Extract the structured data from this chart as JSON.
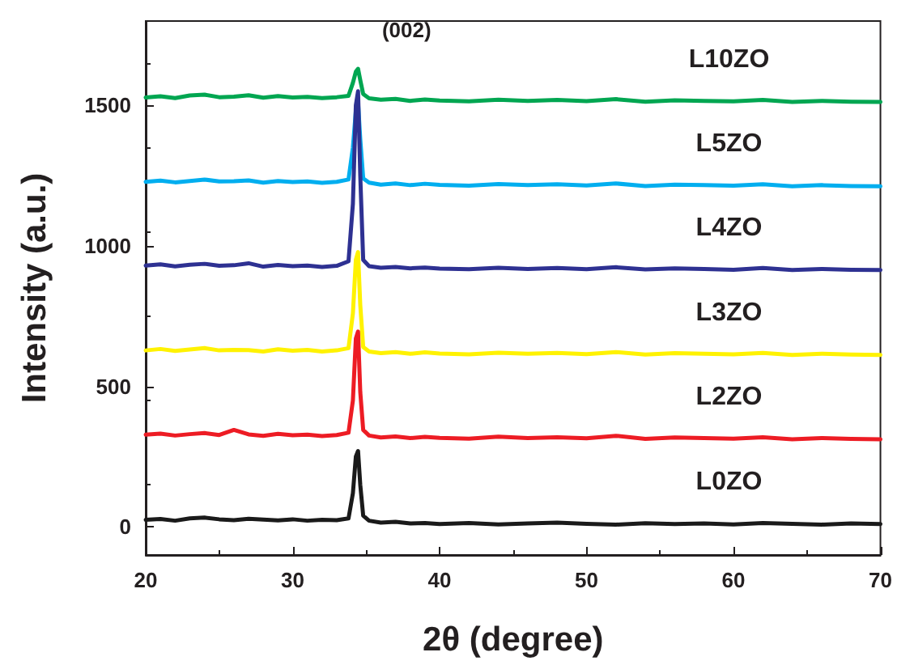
{
  "chart_data": {
    "type": "line",
    "xlabel": "2θ (degree)",
    "ylabel": "Intensity (a.u.)",
    "annotations": [
      {
        "text": "(002)",
        "x": 34.45,
        "y": 1630
      }
    ],
    "xlim": [
      20,
      70
    ],
    "xticks": [
      20,
      30,
      40,
      50,
      60,
      70
    ],
    "ylim": [
      -100,
      1800
    ],
    "yticks": [
      0,
      500,
      1000,
      1500
    ],
    "grid": false,
    "legend": false,
    "marker": "none",
    "line_style": "solid",
    "x": [
      20,
      21,
      22,
      23,
      24,
      25,
      26,
      27,
      28,
      29,
      30,
      31,
      32,
      33,
      33.8,
      34.1,
      34.3,
      34.45,
      34.6,
      34.8,
      35.2,
      36,
      37,
      38,
      39,
      40,
      42,
      44,
      46,
      48,
      50,
      52,
      54,
      56,
      58,
      60,
      62,
      64,
      66,
      68,
      70
    ],
    "series": [
      {
        "name": "L10ZO",
        "color": "#00a651",
        "values": [
          1528,
          1532,
          1526,
          1535,
          1538,
          1529,
          1531,
          1536,
          1527,
          1533,
          1528,
          1530,
          1526,
          1529,
          1534,
          1580,
          1620,
          1630,
          1590,
          1540,
          1525,
          1520,
          1523,
          1516,
          1521,
          1517,
          1514,
          1520,
          1516,
          1519,
          1515,
          1522,
          1513,
          1518,
          1516,
          1514,
          1519,
          1512,
          1516,
          1513,
          1512
        ]
      },
      {
        "name": "L5ZO",
        "color": "#00aeef",
        "values": [
          1228,
          1232,
          1226,
          1231,
          1236,
          1229,
          1230,
          1233,
          1225,
          1231,
          1227,
          1229,
          1224,
          1228,
          1236,
          1350,
          1480,
          1510,
          1380,
          1240,
          1225,
          1218,
          1222,
          1216,
          1221,
          1217,
          1214,
          1220,
          1216,
          1219,
          1215,
          1222,
          1213,
          1218,
          1216,
          1214,
          1219,
          1212,
          1216,
          1213,
          1212
        ]
      },
      {
        "name": "L4ZO",
        "color": "#2e3192",
        "values": [
          930,
          934,
          927,
          933,
          936,
          929,
          931,
          938,
          926,
          932,
          928,
          930,
          925,
          929,
          945,
          1150,
          1500,
          1550,
          1250,
          950,
          928,
          922,
          925,
          920,
          923,
          919,
          917,
          922,
          918,
          921,
          917,
          924,
          916,
          920,
          918,
          915,
          921,
          914,
          918,
          915,
          914
        ]
      },
      {
        "name": "L3ZO",
        "color": "#fff200",
        "values": [
          628,
          633,
          626,
          631,
          636,
          628,
          630,
          629,
          624,
          632,
          627,
          630,
          624,
          628,
          636,
          760,
          950,
          978,
          790,
          640,
          624,
          618,
          622,
          616,
          621,
          617,
          614,
          620,
          616,
          619,
          615,
          622,
          613,
          618,
          616,
          614,
          619,
          612,
          616,
          613,
          612
        ]
      },
      {
        "name": "L2ZO",
        "color": "#ed1c24",
        "values": [
          328,
          332,
          325,
          330,
          334,
          327,
          345,
          329,
          324,
          331,
          326,
          328,
          323,
          327,
          335,
          450,
          670,
          695,
          480,
          345,
          325,
          318,
          322,
          316,
          320,
          317,
          314,
          321,
          316,
          319,
          315,
          324,
          313,
          318,
          316,
          314,
          319,
          312,
          316,
          313,
          312
        ]
      },
      {
        "name": "L0ZO",
        "color": "#1a1a1a",
        "values": [
          25,
          28,
          22,
          30,
          33,
          27,
          24,
          29,
          26,
          23,
          27,
          22,
          25,
          24,
          30,
          120,
          250,
          270,
          150,
          40,
          22,
          15,
          18,
          12,
          14,
          10,
          14,
          9,
          12,
          15,
          11,
          8,
          13,
          10,
          12,
          9,
          14,
          11,
          8,
          12,
          10
        ]
      }
    ]
  }
}
